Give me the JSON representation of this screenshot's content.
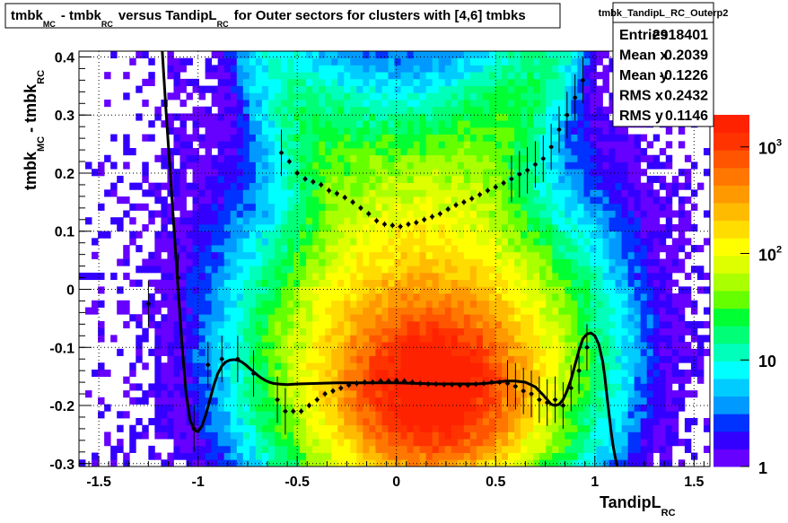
{
  "chart_data": {
    "type": "heatmap",
    "title": {
      "parts": [
        "tmbk",
        "MC",
        "- tmbk",
        "RC",
        "versus TandipL",
        "RC",
        "for Outer sectors for clusters with [4,6] tmbks"
      ]
    },
    "xlabel": {
      "main": "TandipL",
      "sub": "RC"
    },
    "ylabel": {
      "p1": "tmbk",
      "s1": "MC",
      "p2": "- tmbk",
      "s2": "RC"
    },
    "xlim": [
      -1.6,
      1.58
    ],
    "ylim": [
      -0.305,
      0.41
    ],
    "x_ticks": [
      "-1.5",
      "-1",
      "-0.5",
      "0",
      "0.5",
      "1",
      "1.5"
    ],
    "x_tick_values": [
      -1.5,
      -1,
      -0.5,
      0,
      0.5,
      1,
      1.5
    ],
    "y_ticks": [
      "-0.3",
      "-0.2",
      "-0.1",
      "0",
      "0.1",
      "0.2",
      "0.3",
      "0.4"
    ],
    "y_tick_values": [
      -0.3,
      -0.2,
      -0.1,
      0,
      0.1,
      0.2,
      0.3,
      0.4
    ],
    "grid": true,
    "colorbar": {
      "scale": "log",
      "ticks": [
        {
          "base": "1",
          "exp": "",
          "value": 1
        },
        {
          "base": "10",
          "exp": "",
          "value": 10
        },
        {
          "base": "10",
          "exp": "2",
          "value": 100
        },
        {
          "base": "10",
          "exp": "3",
          "value": 1000
        }
      ],
      "max": 2000,
      "colors": [
        "#6600ff",
        "#3300ff",
        "#0033ff",
        "#0099ff",
        "#00ccff",
        "#00ffff",
        "#00ffbb",
        "#00ff77",
        "#00ff33",
        "#66ff00",
        "#aaff00",
        "#ddff00",
        "#ffff00",
        "#ffdd00",
        "#ffbb00",
        "#ff9900",
        "#ff7700",
        "#ff5500",
        "#ff3300",
        "#ff2200"
      ]
    },
    "stats_box": {
      "name": "tmbk_TandipL_RC_Outerp2",
      "rows": [
        {
          "label": "Entries",
          "value": "2918401"
        },
        {
          "label": "Mean x",
          "value": "0.2039"
        },
        {
          "label": "Mean y",
          "value": "-0.1226"
        },
        {
          "label": "RMS x",
          "value": "0.2432"
        },
        {
          "label": "RMS y",
          "value": "0.1146"
        }
      ]
    },
    "profile_upper": {
      "x": [
        -0.58,
        -0.54,
        -0.5,
        -0.46,
        -0.42,
        -0.38,
        -0.34,
        -0.3,
        -0.26,
        -0.22,
        -0.18,
        -0.14,
        -0.1,
        -0.06,
        -0.02,
        0.02,
        0.06,
        0.1,
        0.14,
        0.18,
        0.22,
        0.26,
        0.3,
        0.34,
        0.38,
        0.42,
        0.46,
        0.5,
        0.54,
        0.58,
        0.62,
        0.66,
        0.7,
        0.74,
        0.78,
        0.82,
        0.86,
        0.9,
        0.94
      ],
      "y": [
        0.235,
        0.22,
        0.2,
        0.19,
        0.185,
        0.18,
        0.17,
        0.165,
        0.158,
        0.15,
        0.14,
        0.13,
        0.118,
        0.112,
        0.11,
        0.108,
        0.112,
        0.115,
        0.12,
        0.125,
        0.13,
        0.138,
        0.145,
        0.15,
        0.156,
        0.163,
        0.17,
        0.176,
        0.183,
        0.19,
        0.198,
        0.205,
        0.215,
        0.225,
        0.245,
        0.275,
        0.3,
        0.33,
        0.36
      ]
    },
    "profile_lower": {
      "x": [
        -1.25,
        -1.1,
        -1.02,
        -0.95,
        -0.88,
        -0.8,
        -0.72,
        -0.6,
        -0.56,
        -0.52,
        -0.48,
        -0.44,
        -0.4,
        -0.36,
        -0.32,
        -0.28,
        -0.24,
        -0.2,
        -0.16,
        -0.12,
        -0.08,
        -0.04,
        0.0,
        0.04,
        0.08,
        0.12,
        0.16,
        0.2,
        0.24,
        0.28,
        0.32,
        0.36,
        0.4,
        0.44,
        0.48,
        0.52,
        0.56,
        0.6,
        0.64,
        0.68,
        0.72,
        0.76,
        0.8,
        0.84,
        0.88,
        0.92,
        0.96
      ],
      "y": [
        -0.025,
        0.02,
        -0.24,
        -0.13,
        -0.12,
        -0.12,
        -0.145,
        -0.19,
        -0.21,
        -0.21,
        -0.21,
        -0.2,
        -0.19,
        -0.18,
        -0.175,
        -0.17,
        -0.165,
        -0.162,
        -0.16,
        -0.16,
        -0.158,
        -0.158,
        -0.157,
        -0.158,
        -0.16,
        -0.162,
        -0.163,
        -0.163,
        -0.164,
        -0.164,
        -0.165,
        -0.165,
        -0.163,
        -0.162,
        -0.16,
        -0.16,
        -0.162,
        -0.167,
        -0.175,
        -0.18,
        -0.19,
        -0.195,
        -0.19,
        -0.2,
        -0.17,
        -0.14,
        -0.1
      ]
    },
    "fit_curve": {
      "x": [
        -1.18,
        -1.16,
        -1.14,
        -1.12,
        -1.1,
        -1.08,
        -1.06,
        -1.04,
        -1.02,
        -1.0,
        -0.98,
        -0.96,
        -0.94,
        -0.92,
        -0.9,
        -0.88,
        -0.86,
        -0.84,
        -0.82,
        -0.8,
        -0.78,
        -0.76,
        -0.74,
        -0.72,
        -0.7,
        -0.68,
        -0.66,
        -0.64,
        -0.62,
        -0.6,
        -0.55,
        -0.5,
        -0.4,
        -0.3,
        -0.2,
        -0.1,
        0.0,
        0.1,
        0.2,
        0.3,
        0.4,
        0.45,
        0.5,
        0.55,
        0.6,
        0.65,
        0.7,
        0.74,
        0.76,
        0.78,
        0.8,
        0.82,
        0.84,
        0.86,
        0.88,
        0.9,
        0.92,
        0.94,
        0.96,
        0.98,
        1.0,
        1.02,
        1.04,
        1.05,
        1.06,
        1.07,
        1.08,
        1.09,
        1.1,
        1.11,
        1.12
      ],
      "y": [
        0.41,
        0.3,
        0.2,
        0.1,
        0.0,
        -0.1,
        -0.18,
        -0.225,
        -0.242,
        -0.245,
        -0.235,
        -0.215,
        -0.19,
        -0.165,
        -0.145,
        -0.132,
        -0.125,
        -0.122,
        -0.121,
        -0.122,
        -0.125,
        -0.13,
        -0.136,
        -0.142,
        -0.148,
        -0.153,
        -0.157,
        -0.16,
        -0.162,
        -0.163,
        -0.164,
        -0.163,
        -0.162,
        -0.161,
        -0.161,
        -0.161,
        -0.161,
        -0.162,
        -0.163,
        -0.163,
        -0.163,
        -0.162,
        -0.16,
        -0.158,
        -0.158,
        -0.16,
        -0.168,
        -0.182,
        -0.19,
        -0.198,
        -0.2,
        -0.198,
        -0.19,
        -0.175,
        -0.155,
        -0.13,
        -0.105,
        -0.085,
        -0.077,
        -0.075,
        -0.08,
        -0.095,
        -0.125,
        -0.15,
        -0.18,
        -0.21,
        -0.24,
        -0.265,
        -0.285,
        -0.3,
        -0.315
      ]
    }
  }
}
